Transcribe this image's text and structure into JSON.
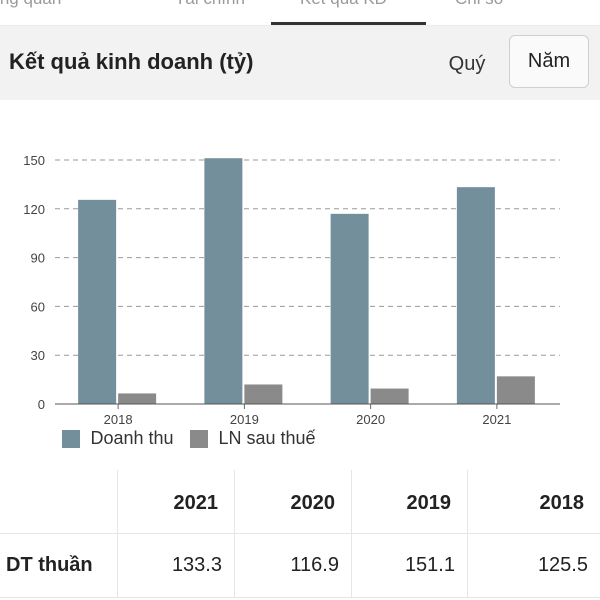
{
  "top_tabs": [
    "Tổng quan",
    "Tài chính",
    "Kết quả KD",
    "Chỉ số"
  ],
  "header": {
    "title": "Kết quả kinh doanh (tỷ)",
    "period_quarter": "Quý",
    "period_year": "Năm",
    "selected_period": "Năm"
  },
  "colors": {
    "revenue": "#738f9b",
    "profit": "#8a8a8a",
    "header_bg": "#f2f2f2"
  },
  "chart_data": {
    "type": "bar",
    "categories": [
      "2018",
      "2019",
      "2020",
      "2021"
    ],
    "series": [
      {
        "name": "Doanh thu",
        "values": [
          125.5,
          151.1,
          116.9,
          133.3
        ]
      },
      {
        "name": "LN sau thuế",
        "values": [
          6.5,
          12.0,
          9.5,
          17.0
        ]
      }
    ],
    "ylim": [
      0,
      150
    ],
    "yticks": [
      0,
      30,
      60,
      90,
      120,
      150
    ],
    "grid": true,
    "legend_position": "bottom-left"
  },
  "table": {
    "headers": [
      "",
      "2021",
      "2020",
      "2019",
      "2018"
    ],
    "rows": [
      {
        "label": "DT thuần",
        "values": [
          "133.3",
          "116.9",
          "151.1",
          "125.5"
        ]
      }
    ]
  }
}
